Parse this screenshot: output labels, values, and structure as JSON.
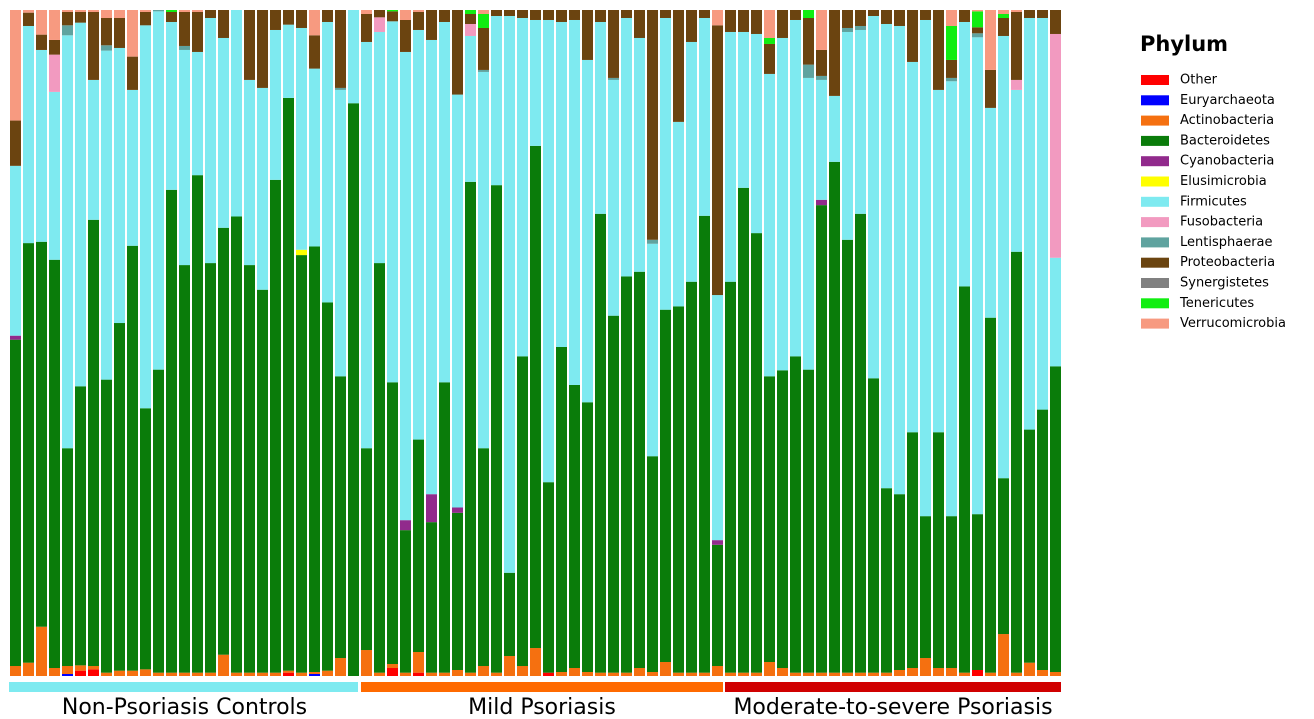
{
  "chart_data": {
    "type": "bar",
    "stacked": true,
    "ylim": [
      0,
      100
    ],
    "legend_title": "Phylum",
    "legend": "right",
    "groups": [
      {
        "name": "Non-Psoriasis Controls",
        "color": "#7eeaf0",
        "count": 27
      },
      {
        "name": "Mild Psoriasis",
        "color": "#ff6a00",
        "count": 28
      },
      {
        "name": "Moderate-to-severe Psoriasis",
        "color": "#d00000",
        "count": 26
      }
    ],
    "series": [
      {
        "name": "Other",
        "color": "#ff0000",
        "values": [
          0,
          0,
          0,
          0,
          0,
          0.8,
          1,
          0,
          0,
          0,
          0,
          0,
          0,
          0,
          0,
          0,
          0,
          0,
          0,
          0,
          0,
          0.5,
          0,
          0,
          0,
          0,
          0,
          0,
          0,
          1.2,
          0,
          0.5,
          0,
          0,
          0,
          0,
          0,
          0,
          0,
          0,
          0,
          0.5,
          0,
          0,
          0,
          0,
          0,
          0,
          0,
          0,
          0,
          0,
          0,
          0,
          0,
          0,
          0,
          0,
          0,
          0,
          0,
          0,
          0,
          0,
          0,
          0,
          0,
          0,
          0,
          0,
          0,
          0,
          0,
          0,
          0.9,
          0,
          0,
          0,
          0,
          0,
          0
        ]
      },
      {
        "name": "Euryarchaeota",
        "color": "#0000ff",
        "values": [
          0,
          0,
          0,
          0,
          0.3,
          0,
          0,
          0,
          0,
          0,
          0,
          0,
          0,
          0,
          0,
          0,
          0,
          0,
          0,
          0,
          0,
          0,
          0,
          0.3,
          0,
          0,
          0,
          0,
          0,
          0,
          0,
          0,
          0,
          0,
          0,
          0,
          0,
          0,
          0,
          0,
          0,
          0,
          0,
          0,
          0,
          0,
          0,
          0,
          0,
          0,
          0,
          0,
          0,
          0,
          0,
          0,
          0,
          0,
          0,
          0,
          0,
          0,
          0,
          0,
          0,
          0,
          0,
          0,
          0,
          0,
          0,
          0,
          0,
          0,
          0,
          0,
          0,
          0,
          0,
          0,
          0
        ]
      },
      {
        "name": "Actinobacteria",
        "color": "#f57010",
        "values": [
          1.5,
          2,
          7.4,
          1.2,
          1.2,
          0.8,
          0.5,
          0.5,
          0.8,
          0.8,
          1,
          0.5,
          0.5,
          0.5,
          0.5,
          0.5,
          3.2,
          0.5,
          0.5,
          0.5,
          0.5,
          0.3,
          0.5,
          0.3,
          0.8,
          2.7,
          0,
          3.9,
          0.5,
          0.6,
          0.5,
          3.1,
          0.5,
          0.5,
          0.9,
          0.5,
          1.5,
          0.5,
          3,
          1.5,
          4.2,
          0,
          0.6,
          1.2,
          0.6,
          0.5,
          0.5,
          0.5,
          1.2,
          0.6,
          2.1,
          0.5,
          0.5,
          0.5,
          1.5,
          0.5,
          0.5,
          0.5,
          2.1,
          1.2,
          0.5,
          0.5,
          0.5,
          0.5,
          0.5,
          0.5,
          0.5,
          0.5,
          0.9,
          1.2,
          2.7,
          1.2,
          1.2,
          0.5,
          0,
          0.5,
          6.3,
          0.5,
          2,
          0.9,
          0.6
        ]
      },
      {
        "name": "Bacteroidetes",
        "color": "#0a7c0a",
        "values": [
          49,
          63,
          57.8,
          61.3,
          32.7,
          41.9,
          67,
          44,
          52.2,
          63.8,
          39.2,
          45.5,
          72.5,
          61.2,
          74.7,
          61.5,
          64.1,
          68.5,
          61.2,
          57.5,
          74,
          86,
          62.7,
          63.9,
          55.3,
          42.3,
          86,
          30.3,
          61.5,
          42.3,
          21.4,
          31.9,
          22.6,
          43.6,
          23.6,
          73.7,
          32.7,
          73.2,
          12.5,
          46.5,
          75.4,
          28.6,
          48.8,
          42.5,
          40.5,
          68.9,
          53.6,
          59.5,
          59.5,
          32.4,
          52.9,
          55,
          58.7,
          68.6,
          18.2,
          58.7,
          72.8,
          66,
          42.9,
          44.7,
          47.5,
          45.5,
          70.2,
          76.7,
          65,
          68.9,
          44.2,
          27.7,
          26.4,
          35.4,
          21.3,
          35.4,
          22.8,
          58,
          23.4,
          53.3,
          23.4,
          63.2,
          35,
          39.1,
          45.9
        ]
      },
      {
        "name": "Cyanobacteria",
        "color": "#912a8c",
        "values": [
          0.6,
          0,
          0,
          0,
          0,
          0,
          0,
          0,
          0,
          0,
          0,
          0,
          0,
          0,
          0,
          0,
          0,
          0,
          0,
          0,
          0,
          0,
          0,
          0,
          0,
          0,
          0,
          0,
          0,
          0,
          1.5,
          0,
          4.2,
          0,
          0.8,
          0,
          0,
          0,
          0,
          0,
          0,
          0,
          0,
          0,
          0,
          0,
          0,
          0,
          0,
          0,
          0,
          0,
          0,
          0,
          0.7,
          0,
          0,
          0,
          0,
          0,
          0,
          0,
          0.8,
          0,
          0,
          0,
          0,
          0,
          0,
          0,
          0,
          0,
          0,
          0,
          0,
          0,
          0,
          0,
          0,
          0,
          0
        ]
      },
      {
        "name": "Elusimicrobia",
        "color": "#ffff00",
        "values": [
          0,
          0,
          0,
          0,
          0,
          0,
          0,
          0,
          0,
          0,
          0,
          0,
          0,
          0,
          0,
          0,
          0,
          0,
          0,
          0,
          0,
          0,
          0.8,
          0,
          0,
          0,
          0,
          0,
          0,
          0,
          0,
          0,
          0,
          0,
          0,
          0,
          0,
          0,
          0,
          0,
          0,
          0,
          0,
          0,
          0,
          0,
          0,
          0,
          0,
          0,
          0,
          0,
          0,
          0,
          0,
          0,
          0,
          0,
          0,
          0,
          0,
          0,
          0,
          0,
          0,
          0,
          0,
          0,
          0,
          0,
          0,
          0,
          0,
          0,
          0,
          0,
          0,
          0,
          0,
          0,
          0
        ]
      },
      {
        "name": "Firmicutes",
        "color": "#7eeaf0",
        "values": [
          25.5,
          32.6,
          28.8,
          25.2,
          62,
          54.6,
          21,
          49.4,
          41.3,
          23.4,
          57.5,
          53.8,
          25.2,
          32.3,
          18.5,
          36.8,
          28.5,
          31,
          27.8,
          30.3,
          22.5,
          11,
          33.3,
          26.7,
          42.1,
          43,
          14,
          61,
          34.7,
          54.2,
          70.3,
          61.5,
          68.2,
          54.1,
          62,
          21.9,
          56.5,
          25.4,
          83.6,
          50.8,
          18.9,
          69.4,
          48.8,
          54.8,
          51.4,
          28.8,
          35.4,
          38.8,
          35.1,
          31.9,
          43.8,
          27.7,
          36,
          29.7,
          36.8,
          37.5,
          23.4,
          29.9,
          45.4,
          49.9,
          50.5,
          43.8,
          18,
          9.9,
          31.2,
          27.6,
          54.4,
          69.7,
          70.3,
          55.6,
          74.5,
          51.4,
          65.3,
          39.7,
          71.6,
          31.5,
          66.4,
          24.3,
          61.8,
          58.8,
          16.3
        ]
      },
      {
        "name": "Fusobacteria",
        "color": "#f29ac0",
        "values": [
          0,
          0,
          0,
          5.6,
          0,
          0,
          0,
          0,
          0,
          0,
          0,
          0,
          0,
          0,
          0,
          0,
          0,
          0,
          0,
          0,
          0,
          0,
          0,
          0,
          0,
          0,
          0,
          0,
          2.2,
          0,
          0,
          0,
          0,
          0,
          0,
          1.8,
          0,
          0,
          0,
          0,
          0,
          0,
          0,
          0,
          0,
          0,
          0,
          0,
          0,
          0,
          0,
          0,
          0,
          0,
          0,
          0,
          0,
          0,
          0,
          0,
          0,
          0,
          0,
          0,
          0,
          0,
          0,
          0,
          0,
          0,
          0,
          0,
          0,
          0,
          0,
          0,
          0,
          1.5,
          0,
          0,
          33.6
        ]
      },
      {
        "name": "Lentisphaerae",
        "color": "#5fa39f",
        "values": [
          0,
          0,
          0,
          0,
          1.5,
          0,
          0,
          0.8,
          0,
          0,
          0,
          0.2,
          0,
          0.6,
          0,
          0,
          0,
          0,
          0,
          0,
          0,
          0,
          0,
          0,
          0,
          0.3,
          0,
          0,
          0,
          0,
          0,
          0,
          0,
          0,
          0,
          0,
          0.3,
          0,
          0,
          0,
          0,
          0,
          0,
          0,
          0,
          0,
          0.3,
          0,
          0,
          0.6,
          0,
          0,
          0,
          0,
          0,
          0,
          0,
          0,
          0,
          0,
          0,
          2,
          0.6,
          0,
          0.6,
          0.6,
          0,
          0,
          0,
          0,
          0,
          0,
          0.5,
          0,
          0.6,
          0,
          0,
          0,
          0,
          0,
          0
        ]
      },
      {
        "name": "Proteobacteria",
        "color": "#6b4410",
        "values": [
          6.8,
          2,
          2.3,
          2.2,
          2,
          1.6,
          10.2,
          4.1,
          4.5,
          5,
          2,
          0,
          1.5,
          5.1,
          6,
          1.2,
          4.2,
          0,
          10.5,
          11.7,
          3,
          2.2,
          2.7,
          5,
          1.8,
          11.7,
          0,
          4.2,
          1.1,
          1.5,
          4.8,
          2.7,
          4.5,
          1.8,
          12.7,
          1.5,
          6.3,
          0.9,
          0.9,
          1.2,
          1.5,
          1.5,
          1.8,
          1.5,
          7.5,
          1.8,
          10.2,
          1.2,
          4.2,
          34.5,
          1.2,
          16.8,
          4.8,
          1.2,
          40.5,
          3.3,
          3.3,
          3.6,
          4.5,
          4.2,
          1.5,
          7,
          3.9,
          12.9,
          2.7,
          2.4,
          0.9,
          2.1,
          2.4,
          7.8,
          1.5,
          12,
          2.7,
          1.8,
          0.9,
          5.7,
          2.7,
          10.2,
          1.2,
          1.2,
          3.6
        ]
      },
      {
        "name": "Synergistetes",
        "color": "#808080",
        "values": [
          0,
          0,
          0,
          0,
          0,
          0,
          0,
          0,
          0,
          0,
          0,
          0,
          0,
          0,
          0,
          0,
          0,
          0,
          0,
          0,
          0,
          0,
          0,
          0,
          0,
          0,
          0,
          0,
          0,
          0,
          0,
          0,
          0,
          0,
          0,
          0,
          0,
          0,
          0,
          0,
          0,
          0,
          0,
          0,
          0,
          0,
          0,
          0,
          0,
          0,
          0,
          0,
          0,
          0,
          0,
          0,
          0,
          0,
          0,
          0,
          0,
          0,
          0,
          0,
          0,
          0,
          0,
          0,
          0,
          0,
          0,
          0,
          0,
          0,
          0,
          0,
          0,
          0,
          0,
          0,
          0
        ]
      },
      {
        "name": "Tenericutes",
        "color": "#11ee11",
        "values": [
          0,
          0,
          0,
          0,
          0,
          0,
          0,
          0,
          0,
          0,
          0,
          0,
          0.3,
          0,
          0,
          0,
          0,
          0,
          0,
          0,
          0,
          0,
          0,
          0,
          0,
          0,
          0,
          0,
          0,
          0.2,
          0,
          0,
          0,
          0,
          0,
          0.6,
          2.1,
          0,
          0,
          0,
          0,
          0,
          0,
          0,
          0,
          0,
          0,
          0,
          0,
          0,
          0,
          0,
          0,
          0,
          0,
          0,
          0,
          0,
          0.9,
          0,
          0,
          1.2,
          0,
          0,
          0,
          0,
          0,
          0,
          0,
          0,
          0,
          0,
          5.1,
          0,
          2.4,
          0,
          0.6,
          0,
          0,
          0,
          0
        ]
      },
      {
        "name": "Verrucomicrobia",
        "color": "#f79a80",
        "values": [
          16.6,
          0.4,
          3.7,
          4.5,
          0.3,
          0.3,
          0.3,
          1.2,
          1.2,
          7,
          0.3,
          0,
          0,
          0.3,
          0.3,
          0,
          0,
          0,
          0,
          0,
          0,
          0,
          0,
          3.8,
          0,
          0,
          0,
          0.6,
          0,
          0,
          1.5,
          0.3,
          0,
          0,
          0,
          0,
          0.6,
          0,
          0,
          0,
          0,
          0,
          0,
          0,
          0,
          0,
          0,
          0,
          0,
          0,
          0,
          0,
          0,
          0,
          2.3,
          0,
          0,
          0,
          4.2,
          0,
          0,
          0,
          6,
          0,
          0,
          0,
          0,
          0,
          0,
          0,
          0,
          0,
          2.4,
          0,
          0.2,
          9,
          0.6,
          0.3,
          0,
          0,
          0
        ]
      }
    ]
  }
}
